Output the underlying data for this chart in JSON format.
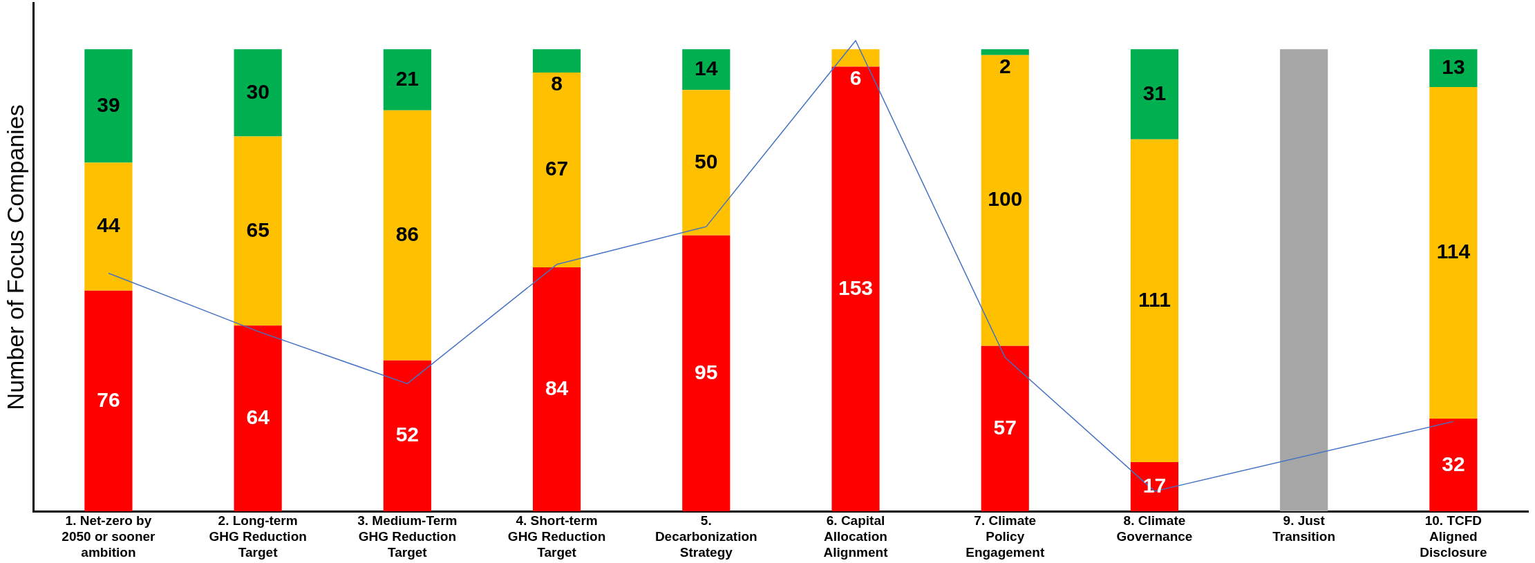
{
  "chart_data": {
    "type": "bar",
    "stacked": true,
    "ylabel": "Number of Focus Companies",
    "ylim": [
      0,
      175
    ],
    "tick_labels": "x",
    "grid": false,
    "legend": false,
    "categories": [
      "1. Net-zero by 2050 or sooner ambition",
      "2. Long-term GHG Reduction Target",
      "3. Medium-Term GHG Reduction Target",
      "4. Short-term GHG Reduction Target",
      "5. Decarbonization Strategy",
      "6. Capital Allocation Alignment",
      "7. Climate Policy Engagement",
      "8. Climate Governance",
      "9. Just Transition",
      "10. TCFD Aligned Disclosure"
    ],
    "series": [
      {
        "color": "#ff0000",
        "values": [
          76,
          64,
          52,
          84,
          95,
          153,
          57,
          17,
          null,
          32
        ],
        "value_labels": [
          "76",
          "64",
          "52",
          "84",
          "95",
          "153",
          "57",
          "17",
          null,
          "32"
        ]
      },
      {
        "color": "#ffc000",
        "values": [
          44,
          65,
          86,
          67,
          50,
          6,
          100,
          111,
          null,
          114
        ],
        "value_labels": [
          "44",
          "65",
          "86",
          "67",
          "50",
          "6",
          "100",
          "111",
          null,
          "114"
        ]
      },
      {
        "color": "#00b050",
        "values": [
          39,
          30,
          21,
          8,
          14,
          null,
          2,
          31,
          null,
          13
        ],
        "value_labels": [
          "39",
          "30",
          "21",
          "8",
          "14",
          null,
          "2",
          "31",
          null,
          "13"
        ]
      },
      {
        "color": "#a6a6a6",
        "values": [
          null,
          null,
          null,
          null,
          null,
          null,
          null,
          null,
          159,
          null
        ]
      },
      {
        "type": "line",
        "color": "#4472c4",
        "marker": "none",
        "values": [
          82,
          62,
          44,
          85,
          98,
          162,
          53,
          7,
          null,
          31
        ]
      }
    ]
  }
}
